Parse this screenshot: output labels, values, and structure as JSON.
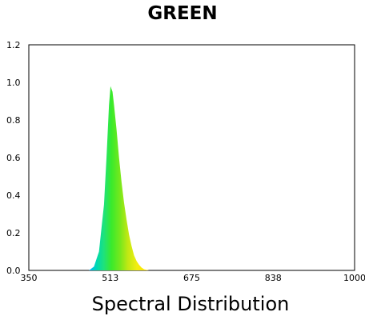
{
  "chart_data": {
    "type": "area",
    "title": "GREEN",
    "xlabel": "Spectral Distribution",
    "ylabel": "",
    "xlim": [
      350,
      1000
    ],
    "ylim": [
      0,
      1.2
    ],
    "x_ticks": [
      "350",
      "513",
      "675",
      "838",
      "1000"
    ],
    "y_ticks": [
      "0.0",
      "0.2",
      "0.4",
      "0.6",
      "0.8",
      "1.0",
      "1.2"
    ],
    "grid": false,
    "series": [
      {
        "x": [
          470,
          480,
          490,
          500,
          505,
          510,
          513,
          517,
          520,
          525,
          530,
          535,
          540,
          545,
          550,
          555,
          560,
          565,
          570,
          575,
          580,
          590
        ],
        "y": [
          0.0,
          0.02,
          0.1,
          0.35,
          0.6,
          0.88,
          0.98,
          0.95,
          0.88,
          0.75,
          0.6,
          0.47,
          0.36,
          0.27,
          0.19,
          0.13,
          0.08,
          0.05,
          0.03,
          0.015,
          0.006,
          0.0
        ]
      }
    ]
  }
}
